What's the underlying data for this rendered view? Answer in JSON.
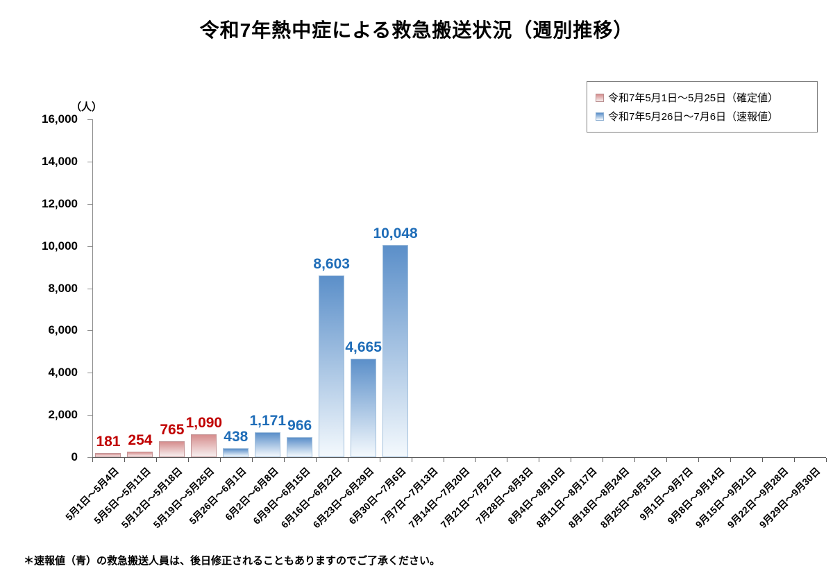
{
  "title": "令和7年熱中症による救急搬送状況（週別推移）",
  "footnote": "＊速報値（青）の救急搬送人員は、後日修正されることもありますのでご了承ください。",
  "y_axis": {
    "unit_label": "（人）",
    "tick_labels": [
      "0",
      "2,000",
      "4,000",
      "6,000",
      "8,000",
      "10,000",
      "12,000",
      "14,000",
      "16,000"
    ]
  },
  "legend": {
    "items": [
      {
        "label": "令和7年5月1日～5月25日（確定値）",
        "swatch_top": "#d68e8e",
        "swatch_bottom": "#f6eeee",
        "swatch_border": "#b98f90"
      },
      {
        "label": "令和7年5月26日～7月6日（速報値）",
        "swatch_top": "#5b8fc9",
        "swatch_bottom": "#f3f8fc",
        "swatch_border": "#8fb0d2"
      }
    ]
  },
  "colors": {
    "confirmed_top": "#d68e8e",
    "confirmed_bottom": "#f7efef",
    "confirmed_border": "#c49597",
    "confirmed_label": "#c00000",
    "preliminary_top": "#5b8fc9",
    "preliminary_bottom": "#f4f9fd",
    "preliminary_border": "#a3c0dc",
    "preliminary_label": "#1f6db8"
  },
  "chart_data": {
    "type": "bar",
    "title": "令和7年熱中症による救急搬送状況（週別推移）",
    "xlabel": "",
    "ylabel": "（人）",
    "ylim": [
      0,
      16000
    ],
    "y_step": 2000,
    "grid": false,
    "legend_position": "top-right",
    "categories": [
      "5月1日～5月4日",
      "5月5日～5月11日",
      "5月12日～5月18日",
      "5月19日～5月25日",
      "5月26日～6月1日",
      "6月2日～6月8日",
      "6月9日～6月15日",
      "6月16日～6月22日",
      "6月23日～6月29日",
      "6月30日～7月6日",
      "7月7日～7月13日",
      "7月14日～7月20日",
      "7月21日～7月27日",
      "7月28日～8月3日",
      "8月4日～8月10日",
      "8月11日～8月17日",
      "8月18日～8月24日",
      "8月25日～8月31日",
      "9月1日～9月7日",
      "9月8日～9月14日",
      "9月15日～9月21日",
      "9月22日～9月28日",
      "9月29日～9月30日"
    ],
    "values": [
      181,
      254,
      765,
      1090,
      438,
      1171,
      966,
      8603,
      4665,
      10048,
      null,
      null,
      null,
      null,
      null,
      null,
      null,
      null,
      null,
      null,
      null,
      null,
      null
    ],
    "value_labels": [
      "181",
      "254",
      "765",
      "1,090",
      "438",
      "1,171",
      "966",
      "8,603",
      "4,665",
      "10,048",
      null,
      null,
      null,
      null,
      null,
      null,
      null,
      null,
      null,
      null,
      null,
      null,
      null
    ],
    "groups": [
      "confirmed",
      "confirmed",
      "confirmed",
      "confirmed",
      "preliminary",
      "preliminary",
      "preliminary",
      "preliminary",
      "preliminary",
      "preliminary",
      null,
      null,
      null,
      null,
      null,
      null,
      null,
      null,
      null,
      null,
      null,
      null,
      null
    ],
    "series": [
      {
        "name": "令和7年5月1日～5月25日（確定値）",
        "group": "confirmed",
        "values": [
          181,
          254,
          765,
          1090
        ]
      },
      {
        "name": "令和7年5月26日～7月6日（速報値）",
        "group": "preliminary",
        "values": [
          438,
          1171,
          966,
          8603,
          4665,
          10048
        ]
      }
    ]
  }
}
